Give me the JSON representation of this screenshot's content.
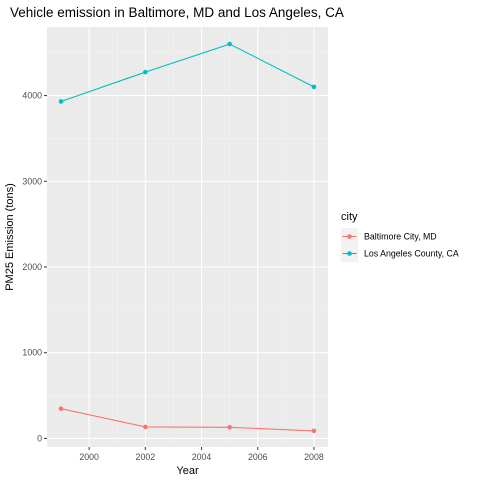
{
  "chart_data": {
    "type": "line",
    "title": "Vehicle emission in Baltimore, MD and Los Angeles, CA",
    "xlabel": "Year",
    "ylabel": "PM25 Emission (tons)",
    "x": [
      1999,
      2002,
      2005,
      2008
    ],
    "xlim": [
      1998.5,
      2008.5
    ],
    "ylim": [
      -100,
      4800
    ],
    "xticks": [
      2000,
      2002,
      2004,
      2006,
      2008
    ],
    "yticks": [
      0,
      1000,
      2000,
      3000,
      4000
    ],
    "xtick_labels": [
      "2000",
      "2002",
      "2004",
      "2006",
      "2008"
    ],
    "ytick_labels": [
      "0",
      "1000",
      "2000",
      "3000",
      "4000"
    ],
    "grid": true,
    "panel_background": "#ebebeb",
    "legend": {
      "title": "city",
      "position": "right"
    },
    "series": [
      {
        "name": "Baltimore City, MD",
        "color": "#f8766d",
        "values": [
          347,
          134,
          130,
          88
        ]
      },
      {
        "name": "Los Angeles County, CA",
        "color": "#00bfc4",
        "values": [
          3931,
          4274,
          4601,
          4101
        ]
      }
    ]
  }
}
